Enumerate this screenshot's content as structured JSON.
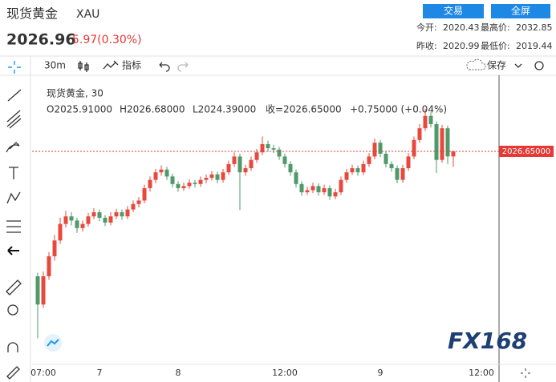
{
  "header": {
    "name": "现货黄金",
    "code": "XAU",
    "price": "2026.96",
    "change": "5.97(0.30%)",
    "buttons": [
      "交易",
      "全屏"
    ],
    "stats": [
      [
        "今开:",
        "2020.43"
      ],
      [
        "最高价:",
        "2032.85"
      ],
      [
        "昨收:",
        "2020.99"
      ],
      [
        "最低价:",
        "2019.44"
      ]
    ]
  },
  "toolbar": {
    "interval": "30m",
    "indicators": "指标",
    "save": "保存"
  },
  "legend": {
    "title": "现货黄金, 30",
    "open": "O2025.91000",
    "high": "H2026.68000",
    "low": "L2024.39000",
    "close": "收=2026.65000",
    "change": "+0.75000 (+0.04%)"
  },
  "watermark": "FX168",
  "chart_data": {
    "type": "candlestick",
    "categories": [
      null,
      "07:00",
      null,
      null,
      null,
      null,
      null,
      null,
      null,
      null,
      null,
      "7",
      null,
      null,
      null,
      null,
      null,
      null,
      null,
      null,
      null,
      null,
      null,
      null,
      null,
      "8",
      null,
      null,
      null,
      null,
      null,
      null,
      null,
      null,
      null,
      null,
      null,
      null,
      null,
      null,
      null,
      null,
      null,
      null,
      "12:00",
      null,
      null,
      null,
      null,
      null,
      null,
      null,
      null,
      null,
      null,
      null,
      null,
      null,
      null,
      null,
      null,
      "9",
      null,
      null,
      null,
      null,
      null,
      null,
      null,
      null,
      null,
      null,
      null,
      null,
      null,
      null,
      null,
      null,
      null,
      "12:00",
      null,
      null
    ],
    "open": [
      2008.5,
      2004.4,
      2008.5,
      2011.4,
      2013.7,
      2016.1,
      2017.2,
      2016.6,
      2015.5,
      2016.1,
      2017.2,
      2017.8,
      2017.0,
      2016.3,
      2017.2,
      2017.8,
      2017.2,
      2018.2,
      2019.0,
      2019.5,
      2021.3,
      2022.5,
      2023.6,
      2024.0,
      2023.0,
      2021.9,
      2021.3,
      2021.6,
      2022.1,
      2021.9,
      2022.5,
      2022.8,
      2023.3,
      2022.5,
      2023.6,
      2024.8,
      2025.9,
      2023.6,
      2024.2,
      2025.4,
      2026.5,
      2027.7,
      2027.1,
      2026.9,
      2025.9,
      2024.8,
      2023.6,
      2021.9,
      2020.7,
      2021.0,
      2021.6,
      2020.7,
      2021.3,
      2020.1,
      2020.7,
      2022.5,
      2023.6,
      2024.2,
      2023.6,
      2024.8,
      2025.9,
      2027.9,
      2026.3,
      2024.8,
      2024.2,
      2022.5,
      2024.2,
      2025.9,
      2028.3,
      2030.0,
      2031.8,
      2030.6,
      2025.4,
      2030.0,
      2025.91,
      null,
      null,
      null,
      null,
      null,
      null,
      null
    ],
    "high": [
      2009.0,
      2009.2,
      2012.0,
      2014.5,
      2017.0,
      2018.0,
      2017.8,
      2017.0,
      2016.6,
      2017.7,
      2018.4,
      2018.2,
      2017.4,
      2017.8,
      2018.3,
      2018.2,
      2018.7,
      2019.5,
      2020.0,
      2021.8,
      2023.0,
      2024.1,
      2024.6,
      2024.4,
      2023.4,
      2022.3,
      2022.1,
      2022.6,
      2022.5,
      2023.0,
      2023.3,
      2023.8,
      2023.7,
      2024.1,
      2025.3,
      2026.5,
      2026.3,
      2024.7,
      2025.9,
      2027.0,
      2028.8,
      2028.2,
      2027.6,
      2027.3,
      2026.3,
      2025.2,
      2024.0,
      2022.3,
      2021.5,
      2022.1,
      2022.0,
      2021.8,
      2021.7,
      2021.2,
      2023.0,
      2024.1,
      2024.7,
      2024.6,
      2025.3,
      2026.4,
      2028.5,
      2028.3,
      2026.7,
      2025.2,
      2024.6,
      2024.7,
      2026.4,
      2028.8,
      2030.6,
      2032.85,
      2032.3,
      2031.0,
      2030.5,
      2030.4,
      2026.68,
      null,
      null,
      null,
      null,
      null,
      null,
      null
    ],
    "low": [
      1999.5,
      2003.9,
      2008.0,
      2010.8,
      2013.2,
      2015.6,
      2015.9,
      2014.8,
      2015.0,
      2015.7,
      2016.8,
      2016.5,
      2015.8,
      2015.9,
      2016.8,
      2016.7,
      2016.8,
      2017.8,
      2018.5,
      2019.1,
      2020.8,
      2022.0,
      2023.1,
      2022.5,
      2021.4,
      2020.8,
      2020.9,
      2021.2,
      2021.4,
      2021.5,
      2022.0,
      2022.4,
      2022.0,
      2022.1,
      2023.2,
      2024.4,
      2018.1,
      2023.1,
      2023.8,
      2025.0,
      2026.1,
      2026.6,
      2026.4,
      2025.4,
      2024.3,
      2023.1,
      2021.4,
      2020.2,
      2020.3,
      2020.6,
      2020.2,
      2020.3,
      2019.6,
      2019.7,
      2020.3,
      2022.1,
      2023.2,
      2023.1,
      2023.2,
      2024.4,
      2025.5,
      2025.8,
      2024.3,
      2023.7,
      2022.0,
      2022.1,
      2023.8,
      2025.5,
      2027.9,
      2029.6,
      2030.1,
      2023.5,
      2025.0,
      2024.8,
      2024.39,
      null,
      null,
      null,
      null,
      null,
      null,
      null
    ],
    "close": [
      2004.4,
      2008.5,
      2011.4,
      2013.7,
      2016.1,
      2017.2,
      2016.6,
      2015.5,
      2016.1,
      2017.2,
      2017.8,
      2017.0,
      2016.3,
      2017.2,
      2017.8,
      2017.2,
      2018.2,
      2019.0,
      2019.5,
      2021.3,
      2022.5,
      2023.6,
      2024.0,
      2023.0,
      2021.9,
      2021.3,
      2021.6,
      2022.1,
      2021.9,
      2022.5,
      2022.8,
      2023.3,
      2022.5,
      2023.6,
      2024.8,
      2025.9,
      2023.6,
      2024.2,
      2025.4,
      2026.5,
      2027.7,
      2027.1,
      2026.9,
      2025.9,
      2024.8,
      2023.6,
      2021.9,
      2020.7,
      2021.0,
      2021.6,
      2020.7,
      2021.3,
      2020.1,
      2020.7,
      2022.5,
      2023.6,
      2024.2,
      2023.6,
      2024.8,
      2025.9,
      2027.9,
      2026.3,
      2024.8,
      2024.2,
      2022.5,
      2024.2,
      2025.9,
      2028.3,
      2030.0,
      2031.8,
      2030.6,
      2025.4,
      2030.0,
      2025.91,
      2026.65,
      null,
      null,
      null,
      null,
      null,
      null,
      null
    ],
    "up_color": "#e8493d",
    "down_color": "#4e9a6a",
    "ylim": [
      1995.7,
      2037.0
    ],
    "last_price": {
      "value": 2026.65,
      "label": "2026.65000"
    },
    "last_price_color": "#e53935"
  }
}
